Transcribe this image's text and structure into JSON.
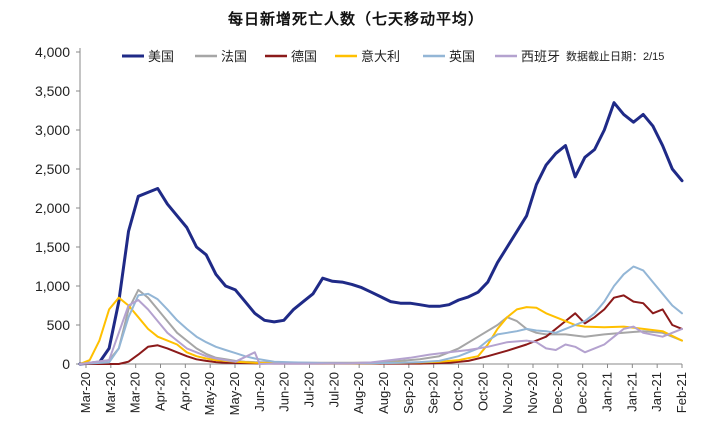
{
  "chart_data": {
    "type": "line",
    "title": "每日新增死亡人数（七天移动平均）",
    "note": "数据截止日期：2/15",
    "ylim": [
      0,
      4000
    ],
    "y_ticks": [
      0,
      500,
      1000,
      1500,
      2000,
      2500,
      3000,
      3500,
      4000
    ],
    "y_tick_labels": [
      "0",
      "500",
      "1,000",
      "1,500",
      "2,000",
      "2,500",
      "3,000",
      "3,500",
      "4,000"
    ],
    "x_tick_labels": [
      "Mar-20",
      "Mar-20",
      "Mar-20",
      "Apr-20",
      "Apr-20",
      "May-20",
      "May-20",
      "Jun-20",
      "Jun-20",
      "Jul-20",
      "Jul-20",
      "Aug-20",
      "Aug-20",
      "Sep-20",
      "Sep-20",
      "Oct-20",
      "Oct-20",
      "Nov-20",
      "Nov-20",
      "Dec-20",
      "Dec-20",
      "Jan-21",
      "Jan-21",
      "Jan-21",
      "Feb-21"
    ],
    "series": [
      {
        "name": "美国",
        "color": "#1f2a87",
        "width": 3,
        "points": [
          [
            0,
            0
          ],
          [
            2,
            20
          ],
          [
            3,
            200
          ],
          [
            4,
            800
          ],
          [
            5,
            1700
          ],
          [
            6,
            2150
          ],
          [
            7,
            2200
          ],
          [
            8,
            2250
          ],
          [
            9,
            2050
          ],
          [
            10,
            1900
          ],
          [
            11,
            1750
          ],
          [
            12,
            1500
          ],
          [
            13,
            1400
          ],
          [
            14,
            1150
          ],
          [
            15,
            1000
          ],
          [
            16,
            950
          ],
          [
            17,
            800
          ],
          [
            18,
            650
          ],
          [
            19,
            560
          ],
          [
            20,
            540
          ],
          [
            21,
            560
          ],
          [
            22,
            700
          ],
          [
            23,
            800
          ],
          [
            24,
            900
          ],
          [
            25,
            1100
          ],
          [
            26,
            1060
          ],
          [
            27,
            1050
          ],
          [
            28,
            1020
          ],
          [
            29,
            980
          ],
          [
            30,
            920
          ],
          [
            31,
            860
          ],
          [
            32,
            800
          ],
          [
            33,
            780
          ],
          [
            34,
            780
          ],
          [
            35,
            760
          ],
          [
            36,
            740
          ],
          [
            37,
            740
          ],
          [
            38,
            760
          ],
          [
            39,
            820
          ],
          [
            40,
            860
          ],
          [
            41,
            920
          ],
          [
            42,
            1050
          ],
          [
            43,
            1300
          ],
          [
            44,
            1500
          ],
          [
            45,
            1700
          ],
          [
            46,
            1900
          ],
          [
            47,
            2300
          ],
          [
            48,
            2550
          ],
          [
            49,
            2700
          ],
          [
            50,
            2800
          ],
          [
            51,
            2400
          ],
          [
            52,
            2650
          ],
          [
            53,
            2750
          ],
          [
            54,
            3000
          ],
          [
            55,
            3350
          ],
          [
            56,
            3200
          ],
          [
            57,
            3100
          ],
          [
            58,
            3200
          ],
          [
            59,
            3050
          ],
          [
            60,
            2800
          ],
          [
            61,
            2500
          ],
          [
            62,
            2350
          ]
        ]
      },
      {
        "name": "法国",
        "color": "#a6a6a6",
        "width": 2,
        "points": [
          [
            0,
            0
          ],
          [
            3,
            50
          ],
          [
            4,
            200
          ],
          [
            5,
            700
          ],
          [
            6,
            950
          ],
          [
            7,
            850
          ],
          [
            8,
            700
          ],
          [
            9,
            550
          ],
          [
            10,
            400
          ],
          [
            11,
            300
          ],
          [
            12,
            200
          ],
          [
            13,
            130
          ],
          [
            14,
            80
          ],
          [
            15,
            60
          ],
          [
            16,
            40
          ],
          [
            17,
            30
          ],
          [
            18,
            25
          ],
          [
            20,
            20
          ],
          [
            24,
            15
          ],
          [
            28,
            15
          ],
          [
            31,
            20
          ],
          [
            33,
            40
          ],
          [
            35,
            60
          ],
          [
            37,
            100
          ],
          [
            39,
            200
          ],
          [
            41,
            350
          ],
          [
            43,
            500
          ],
          [
            44,
            600
          ],
          [
            45,
            550
          ],
          [
            46,
            450
          ],
          [
            47,
            400
          ],
          [
            48,
            380
          ],
          [
            50,
            380
          ],
          [
            52,
            350
          ],
          [
            54,
            380
          ],
          [
            56,
            400
          ],
          [
            58,
            420
          ],
          [
            60,
            400
          ],
          [
            62,
            300
          ]
        ]
      },
      {
        "name": "德国",
        "color": "#8b1a1a",
        "width": 2,
        "points": [
          [
            0,
            0
          ],
          [
            4,
            0
          ],
          [
            5,
            30
          ],
          [
            6,
            120
          ],
          [
            7,
            220
          ],
          [
            8,
            240
          ],
          [
            9,
            200
          ],
          [
            10,
            150
          ],
          [
            11,
            100
          ],
          [
            12,
            60
          ],
          [
            13,
            40
          ],
          [
            14,
            25
          ],
          [
            15,
            15
          ],
          [
            20,
            5
          ],
          [
            28,
            5
          ],
          [
            35,
            5
          ],
          [
            38,
            15
          ],
          [
            40,
            40
          ],
          [
            42,
            100
          ],
          [
            44,
            170
          ],
          [
            46,
            250
          ],
          [
            48,
            350
          ],
          [
            50,
            550
          ],
          [
            51,
            650
          ],
          [
            52,
            520
          ],
          [
            53,
            600
          ],
          [
            54,
            700
          ],
          [
            55,
            850
          ],
          [
            56,
            880
          ],
          [
            57,
            800
          ],
          [
            58,
            780
          ],
          [
            59,
            650
          ],
          [
            60,
            700
          ],
          [
            61,
            500
          ],
          [
            62,
            450
          ]
        ]
      },
      {
        "name": "意大利",
        "color": "#ffc000",
        "width": 2,
        "points": [
          [
            0,
            0
          ],
          [
            1,
            50
          ],
          [
            2,
            300
          ],
          [
            3,
            700
          ],
          [
            4,
            850
          ],
          [
            5,
            750
          ],
          [
            6,
            600
          ],
          [
            7,
            450
          ],
          [
            8,
            350
          ],
          [
            9,
            300
          ],
          [
            10,
            250
          ],
          [
            11,
            150
          ],
          [
            12,
            100
          ],
          [
            13,
            70
          ],
          [
            14,
            50
          ],
          [
            15,
            40
          ],
          [
            16,
            30
          ],
          [
            18,
            15
          ],
          [
            20,
            10
          ],
          [
            25,
            5
          ],
          [
            30,
            10
          ],
          [
            33,
            15
          ],
          [
            35,
            20
          ],
          [
            37,
            30
          ],
          [
            39,
            50
          ],
          [
            41,
            100
          ],
          [
            42,
            250
          ],
          [
            43,
            450
          ],
          [
            44,
            600
          ],
          [
            45,
            700
          ],
          [
            46,
            730
          ],
          [
            47,
            720
          ],
          [
            48,
            650
          ],
          [
            49,
            600
          ],
          [
            50,
            550
          ],
          [
            51,
            500
          ],
          [
            52,
            480
          ],
          [
            54,
            470
          ],
          [
            56,
            480
          ],
          [
            58,
            450
          ],
          [
            60,
            420
          ],
          [
            62,
            300
          ]
        ]
      },
      {
        "name": "英国",
        "color": "#93b6d6",
        "width": 2,
        "points": [
          [
            0,
            0
          ],
          [
            3,
            20
          ],
          [
            4,
            200
          ],
          [
            5,
            600
          ],
          [
            6,
            880
          ],
          [
            7,
            900
          ],
          [
            8,
            830
          ],
          [
            9,
            700
          ],
          [
            10,
            560
          ],
          [
            11,
            450
          ],
          [
            12,
            350
          ],
          [
            13,
            280
          ],
          [
            14,
            220
          ],
          [
            15,
            180
          ],
          [
            16,
            140
          ],
          [
            17,
            100
          ],
          [
            18,
            70
          ],
          [
            19,
            50
          ],
          [
            20,
            30
          ],
          [
            22,
            20
          ],
          [
            26,
            10
          ],
          [
            30,
            10
          ],
          [
            33,
            15
          ],
          [
            35,
            25
          ],
          [
            37,
            40
          ],
          [
            39,
            100
          ],
          [
            41,
            200
          ],
          [
            42,
            300
          ],
          [
            43,
            380
          ],
          [
            44,
            400
          ],
          [
            45,
            420
          ],
          [
            46,
            450
          ],
          [
            47,
            430
          ],
          [
            48,
            420
          ],
          [
            49,
            400
          ],
          [
            50,
            450
          ],
          [
            51,
            500
          ],
          [
            52,
            550
          ],
          [
            53,
            650
          ],
          [
            54,
            800
          ],
          [
            55,
            1000
          ],
          [
            56,
            1150
          ],
          [
            57,
            1250
          ],
          [
            58,
            1200
          ],
          [
            59,
            1050
          ],
          [
            60,
            900
          ],
          [
            61,
            750
          ],
          [
            62,
            650
          ]
        ]
      },
      {
        "name": "西班牙",
        "color": "#b4a2cf",
        "width": 2,
        "points": [
          [
            0,
            0
          ],
          [
            3,
            50
          ],
          [
            4,
            400
          ],
          [
            5,
            750
          ],
          [
            6,
            820
          ],
          [
            7,
            700
          ],
          [
            8,
            550
          ],
          [
            9,
            400
          ],
          [
            10,
            300
          ],
          [
            11,
            200
          ],
          [
            12,
            150
          ],
          [
            13,
            100
          ],
          [
            14,
            70
          ],
          [
            15,
            50
          ],
          [
            16,
            30
          ],
          [
            18,
            150
          ],
          [
            18.5,
            0
          ],
          [
            20,
            5
          ],
          [
            24,
            5
          ],
          [
            28,
            10
          ],
          [
            30,
            20
          ],
          [
            32,
            50
          ],
          [
            34,
            80
          ],
          [
            36,
            120
          ],
          [
            38,
            150
          ],
          [
            40,
            180
          ],
          [
            42,
            220
          ],
          [
            44,
            280
          ],
          [
            46,
            300
          ],
          [
            47,
            280
          ],
          [
            48,
            200
          ],
          [
            49,
            180
          ],
          [
            50,
            250
          ],
          [
            51,
            220
          ],
          [
            52,
            150
          ],
          [
            53,
            200
          ],
          [
            54,
            250
          ],
          [
            55,
            350
          ],
          [
            56,
            450
          ],
          [
            57,
            480
          ],
          [
            58,
            400
          ],
          [
            60,
            350
          ],
          [
            62,
            450
          ]
        ]
      }
    ]
  }
}
